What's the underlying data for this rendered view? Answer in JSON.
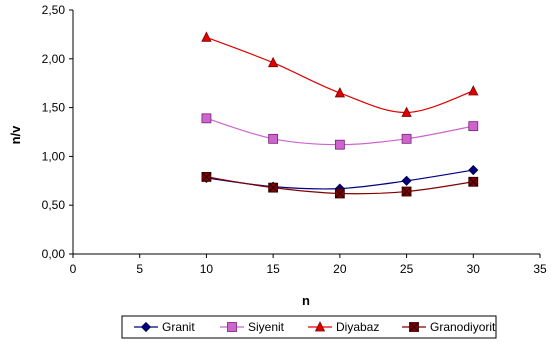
{
  "chart_data": {
    "type": "line",
    "title": "",
    "xlabel": "n",
    "ylabel": "n/v",
    "xlim": [
      0,
      35
    ],
    "ylim": [
      0,
      2.5
    ],
    "x_ticks": [
      "0",
      "5",
      "10",
      "15",
      "20",
      "25",
      "30",
      "35"
    ],
    "y_ticks": [
      "0,00",
      "0,50",
      "1,00",
      "1,50",
      "2,00",
      "2,50"
    ],
    "grid": false,
    "legend_position": "bottom",
    "series": [
      {
        "name": "Granit",
        "color": "#000080",
        "marker": "diamond",
        "x": [
          10,
          15,
          20,
          25,
          30
        ],
        "y": [
          0.78,
          0.69,
          0.67,
          0.75,
          0.86
        ]
      },
      {
        "name": "Siyenit",
        "color": "#CC66CC",
        "marker": "square",
        "x": [
          10,
          15,
          20,
          25,
          30
        ],
        "y": [
          1.39,
          1.18,
          1.12,
          1.18,
          1.31
        ]
      },
      {
        "name": "Diyabaz",
        "color": "#E00000",
        "marker": "triangle",
        "x": [
          10,
          15,
          20,
          25,
          30
        ],
        "y": [
          2.22,
          1.96,
          1.65,
          1.45,
          1.67
        ]
      },
      {
        "name": "Granodiyorit",
        "color": "#800000",
        "marker": "x-square",
        "x": [
          10,
          15,
          20,
          25,
          30
        ],
        "y": [
          0.79,
          0.68,
          0.62,
          0.64,
          0.74
        ]
      }
    ]
  }
}
